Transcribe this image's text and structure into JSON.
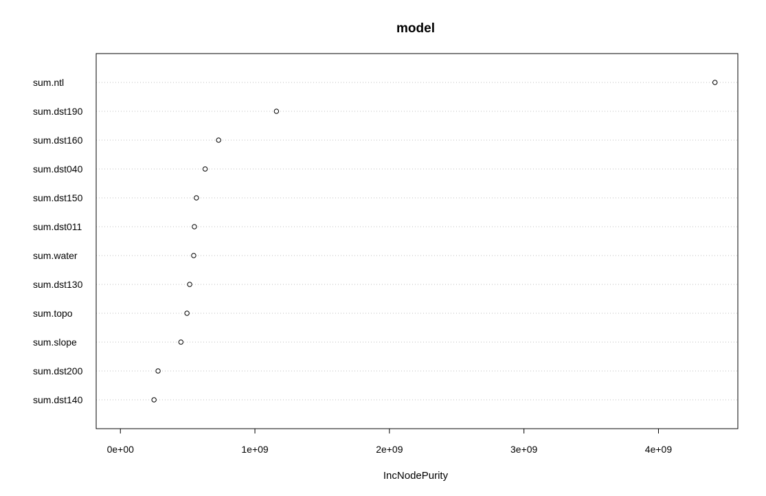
{
  "chart_data": {
    "type": "scatter",
    "title": "model",
    "xlabel": "IncNodePurity",
    "ylabel": "",
    "categories": [
      "sum.ntl",
      "sum.dst190",
      "sum.dst160",
      "sum.dst040",
      "sum.dst150",
      "sum.dst011",
      "sum.water",
      "sum.dst130",
      "sum.topo",
      "sum.slope",
      "sum.dst200",
      "sum.dst140"
    ],
    "values": [
      4420000000,
      1160000000,
      730000000,
      630000000,
      565000000,
      550000000,
      545000000,
      515000000,
      495000000,
      450000000,
      280000000,
      250000000
    ],
    "xlim": [
      -180000000,
      4590000000
    ],
    "xticks": [
      0,
      1000000000,
      2000000000,
      3000000000,
      4000000000
    ],
    "xtick_labels": [
      "0e+00",
      "1e+09",
      "2e+09",
      "3e+09",
      "4e+09"
    ],
    "grid": "horizontal dotted",
    "legend": "none"
  }
}
